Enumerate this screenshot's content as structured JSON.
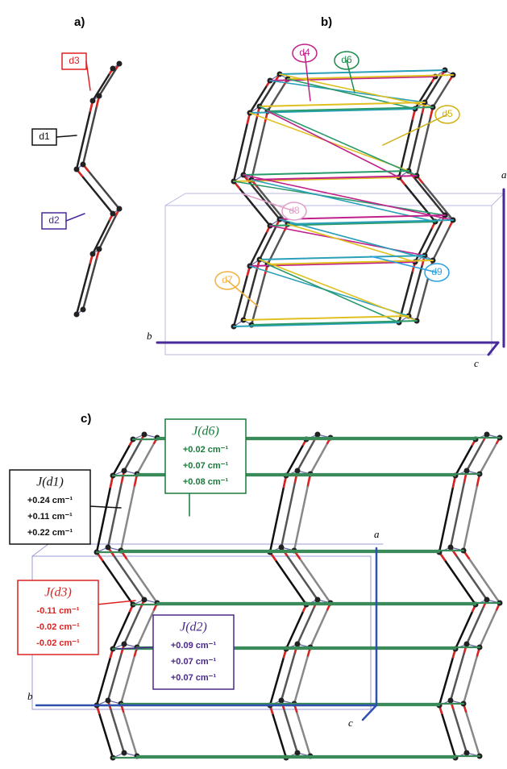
{
  "panel_a": {
    "label": "a)",
    "tags": [
      "d3",
      "d1",
      "d2"
    ]
  },
  "panel_b": {
    "label": "b)",
    "tags": [
      "d4",
      "d6",
      "d5",
      "d8",
      "d7",
      "d9"
    ],
    "axes": [
      "a",
      "b",
      "c"
    ]
  },
  "panel_c": {
    "label": "c)",
    "axes": [
      "a",
      "b",
      "c"
    ],
    "boxes": [
      {
        "title": "J(d6)",
        "lines": [
          "+0.02 cm⁻¹",
          "+0.07 cm⁻¹",
          "+0.08 cm⁻¹"
        ]
      },
      {
        "title": "J(d1)",
        "lines": [
          "+0.24 cm⁻¹",
          "+0.11 cm⁻¹",
          "+0.22 cm⁻¹"
        ]
      },
      {
        "title": "J(d3)",
        "lines": [
          "-0.11 cm⁻¹",
          "-0.02 cm⁻¹",
          "-0.02 cm⁻¹"
        ]
      },
      {
        "title": "J(d2)",
        "lines": [
          "+0.09 cm⁻¹",
          "+0.07 cm⁻¹",
          "+0.07 cm⁻¹"
        ]
      }
    ]
  }
}
